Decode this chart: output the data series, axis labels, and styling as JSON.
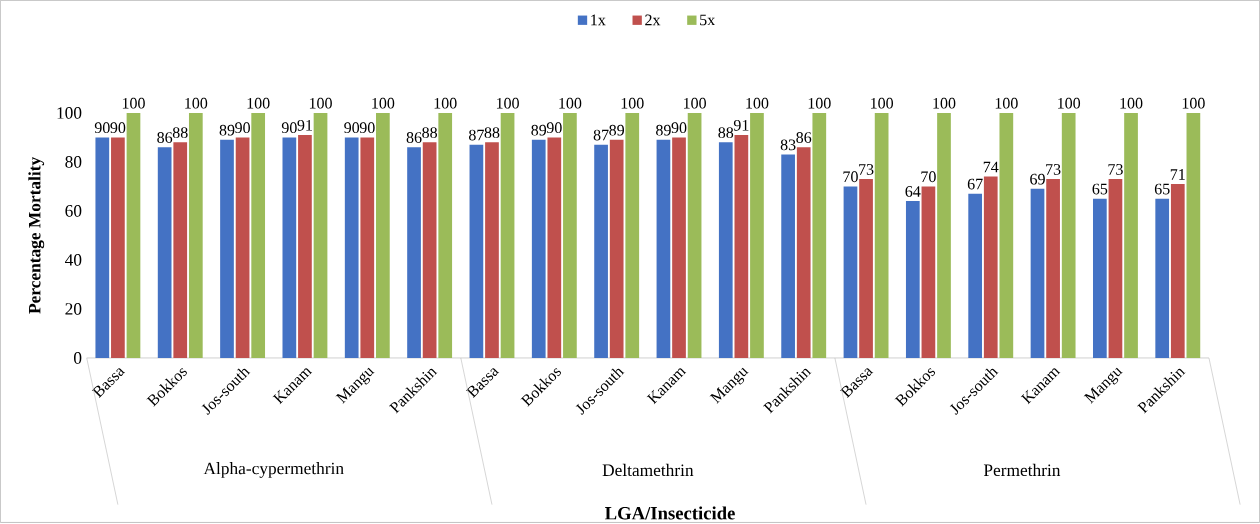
{
  "chart_data": {
    "type": "bar",
    "xlabel": "LGA/Insecticide",
    "ylabel": "Percentage Mortality",
    "categories": [
      "Bassa",
      "Bokkos",
      "Jos-south",
      "Kanam",
      "Mangu",
      "Pankshin",
      "Bassa",
      "Bokkos",
      "Jos-south",
      "Kanam",
      "Mangu",
      "Pankshin",
      "Bassa",
      "Bokkos",
      "Jos-south",
      "Kanam",
      "Mangu",
      "Pankshin"
    ],
    "series": [
      {
        "name": "1x",
        "color": "#4472c4",
        "values": [
          90,
          86,
          89,
          90,
          90,
          86,
          87,
          89,
          87,
          89,
          88,
          83,
          70,
          64,
          67,
          69,
          65,
          65
        ]
      },
      {
        "name": "2x",
        "color": "#c0504d",
        "values": [
          90,
          88,
          90,
          91,
          90,
          88,
          88,
          90,
          89,
          90,
          91,
          86,
          73,
          70,
          74,
          73,
          73,
          71
        ]
      },
      {
        "name": "5x",
        "color": "#9bbb59",
        "values": [
          100,
          100,
          100,
          100,
          100,
          100,
          100,
          100,
          100,
          100,
          100,
          100,
          100,
          100,
          100,
          100,
          100,
          100
        ]
      }
    ],
    "annotations": [
      "Alpha-cypermethrin",
      "Deltamethrin",
      "Permethrin"
    ],
    "ylim": [
      0,
      100
    ],
    "yticks": [
      0,
      20,
      40,
      60,
      80,
      100
    ],
    "data_labels": true,
    "legend": "top"
  }
}
